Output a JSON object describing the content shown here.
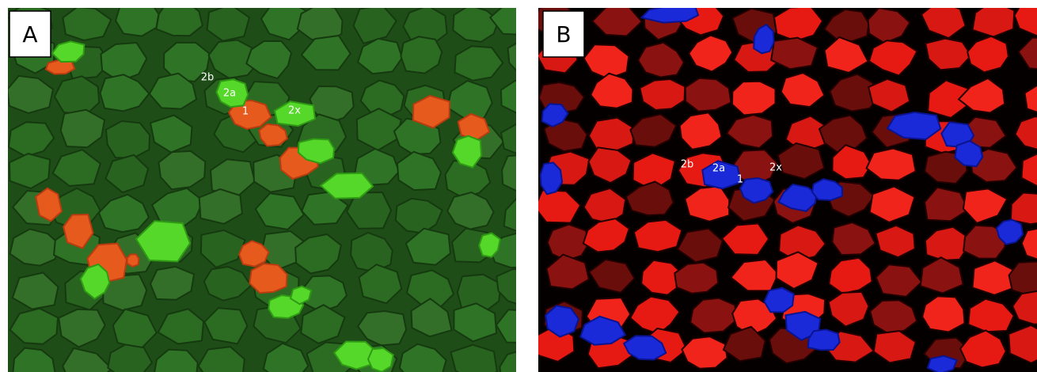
{
  "panels": [
    {
      "label": "A",
      "annotations": [
        "2b",
        "2a",
        "1",
        "2x"
      ]
    },
    {
      "label": "B",
      "annotations": [
        "2b",
        "2a",
        "1",
        "2x"
      ]
    }
  ]
}
